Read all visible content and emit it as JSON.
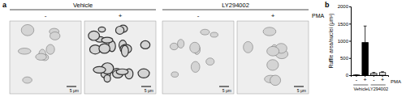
{
  "chart_data": {
    "type": "bar",
    "categories": [
      "-",
      "+",
      "-",
      "+"
    ],
    "groups": [
      "Vehicle",
      "LY294002"
    ],
    "xlabel": "PMA",
    "ylabel": "Ruffle area/nuclei (μm²)",
    "values": [
      5,
      950,
      50,
      75
    ],
    "errors": [
      3,
      480,
      30,
      25
    ],
    "colors": [
      "#000000",
      "#000000",
      "#ffffff",
      "#ffffff"
    ],
    "ylim": [
      0,
      2000
    ],
    "yticks": [
      0,
      500,
      1000,
      1500,
      2000
    ]
  },
  "figure": {
    "panel_labels": [
      "a",
      "b"
    ],
    "conditions": [
      "Vehicle",
      "LY294002"
    ],
    "pma_signs": [
      "-",
      "+",
      "-",
      "+"
    ],
    "pma_label": "PMA",
    "scale_bar": "5 μm"
  }
}
